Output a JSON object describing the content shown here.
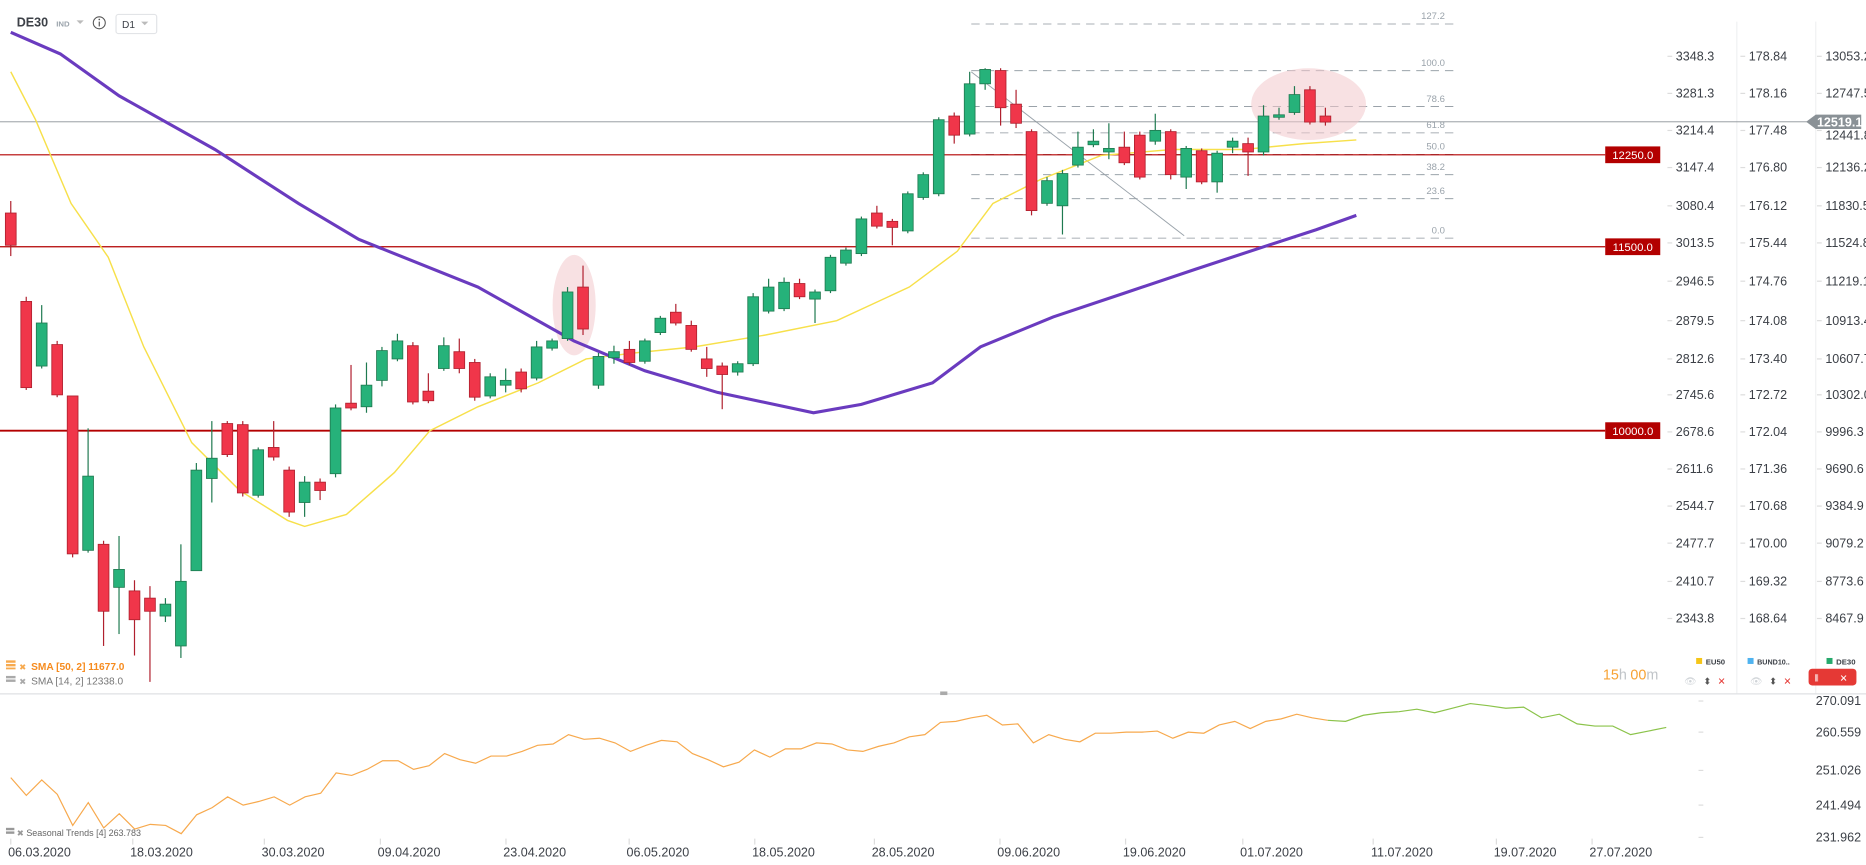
{
  "header": {
    "symbol": "DE30",
    "type": "IND",
    "interval": "D1"
  },
  "legend": {
    "sma50": "SMA [50, 2] 11677.0",
    "sma14": "SMA [14, 2] 12338.0",
    "seasonal": "Seasonal  Trends [4] 263.783",
    "countdown_h": "15",
    "countdown_hu": "h",
    "countdown_m": "00",
    "countdown_mu": "m",
    "instruments": [
      {
        "name": "EU50",
        "color": "#f5c518"
      },
      {
        "name": "BUND10..",
        "color": "#4fb3f0"
      },
      {
        "name": "DE30",
        "color": "#26a96c"
      }
    ]
  },
  "colors": {
    "up": "#26b27a",
    "down": "#f0364a",
    "sma50": "#6a3bbf",
    "sma14": "#f7e04a",
    "level": "#b30000",
    "seasonal_past": "#f7a94d",
    "seasonal_future": "#8bc34a"
  },
  "price_line": {
    "label": "12519.1",
    "value": 12519.1
  },
  "levels": [
    {
      "label": "12250.0",
      "value": 12250
    },
    {
      "label": "11500.0",
      "value": 11500
    },
    {
      "label": "10000.0",
      "value": 10000
    }
  ],
  "axes": {
    "eu50": [
      "3348.3",
      "3281.3",
      "3214.4",
      "3147.4",
      "3080.4",
      "3013.5",
      "2946.5",
      "2879.5",
      "2812.6",
      "2745.6",
      "2678.6",
      "2611.6",
      "2544.7",
      "2477.7",
      "2410.7",
      "2343.8"
    ],
    "bund": [
      "178.84",
      "178.16",
      "177.48",
      "176.80",
      "176.12",
      "175.44",
      "174.76",
      "174.08",
      "173.40",
      "172.72",
      "172.04",
      "171.36",
      "170.68",
      "170.00",
      "169.32",
      "168.64"
    ],
    "de30": [
      "13053.2",
      "12747.5",
      "12441.8",
      "12136.2",
      "11830.5",
      "11524.8",
      "11219.1",
      "10913.4",
      "10607.7",
      "10302.0",
      "9996.3",
      "9690.6",
      "9384.9",
      "9079.2",
      "8773.6",
      "8467.9"
    ],
    "seasonal": [
      "270.091",
      "260.559",
      "251.026",
      "241.494",
      "231.962"
    ],
    "dates": [
      "06.03.2020",
      "18.03.2020",
      "30.03.2020",
      "09.04.2020",
      "23.04.2020",
      "06.05.2020",
      "18.05.2020",
      "28.05.2020",
      "09.06.2020",
      "19.06.2020",
      "01.07.2020",
      "11.07.2020",
      "19.07.2020",
      "27.07.2020"
    ]
  },
  "chart_data": {
    "type": "candlestick",
    "title": "DE30 D1",
    "ylim": [
      8467.9,
      13053.2
    ],
    "candles_ohlc": [
      [
        11775,
        11873,
        11424,
        11512
      ],
      [
        11054,
        11092,
        10332,
        10351
      ],
      [
        10527,
        11024,
        10507,
        10878
      ],
      [
        10702,
        10732,
        10273,
        10292
      ],
      [
        10283,
        10283,
        8966,
        8995
      ],
      [
        9024,
        10019,
        9005,
        9629
      ],
      [
        9073,
        9102,
        8244,
        8527
      ],
      [
        8722,
        9141,
        8341,
        8868
      ],
      [
        8693,
        8780,
        8166,
        8458
      ],
      [
        8634,
        8732,
        7951,
        8527
      ],
      [
        8488,
        8634,
        8439,
        8585
      ],
      [
        8244,
        9073,
        8146,
        8771
      ],
      [
        8858,
        9736,
        8858,
        9678
      ],
      [
        9610,
        10078,
        9414,
        9775
      ],
      [
        10058,
        10078,
        9785,
        9805
      ],
      [
        10049,
        10078,
        9463,
        9492
      ],
      [
        9473,
        9863,
        9454,
        9844
      ],
      [
        9863,
        10078,
        9756,
        9785
      ],
      [
        9678,
        9707,
        9297,
        9336
      ],
      [
        9414,
        9629,
        9297,
        9580
      ],
      [
        9580,
        9610,
        9434,
        9512
      ],
      [
        9649,
        10214,
        9619,
        10185
      ],
      [
        10224,
        10536,
        10166,
        10185
      ],
      [
        10195,
        10556,
        10146,
        10371
      ],
      [
        10410,
        10683,
        10361,
        10653
      ],
      [
        10585,
        10790,
        10566,
        10732
      ],
      [
        10693,
        10722,
        10214,
        10234
      ],
      [
        10322,
        10468,
        10224,
        10244
      ],
      [
        10507,
        10761,
        10488,
        10693
      ],
      [
        10644,
        10751,
        10468,
        10507
      ],
      [
        10556,
        10585,
        10244,
        10273
      ],
      [
        10283,
        10468,
        10263,
        10439
      ],
      [
        10371,
        10507,
        10312,
        10410
      ],
      [
        10478,
        10507,
        10312,
        10341
      ],
      [
        10429,
        10732,
        10410,
        10683
      ],
      [
        10673,
        10751,
        10653,
        10732
      ],
      [
        10751,
        11171,
        10732,
        11131
      ],
      [
        11171,
        11346,
        10780,
        10829
      ],
      [
        10371,
        10634,
        10341,
        10605
      ],
      [
        10595,
        10693,
        10546,
        10644
      ],
      [
        10663,
        10732,
        10536,
        10556
      ],
      [
        10566,
        10751,
        10546,
        10732
      ],
      [
        10800,
        10936,
        10780,
        10917
      ],
      [
        10966,
        11034,
        10858,
        10878
      ],
      [
        10858,
        10897,
        10644,
        10663
      ],
      [
        10585,
        10683,
        10439,
        10507
      ],
      [
        10527,
        10556,
        10175,
        10458
      ],
      [
        10478,
        10566,
        10449,
        10546
      ],
      [
        10546,
        11122,
        10527,
        11092
      ],
      [
        10975,
        11239,
        10956,
        11171
      ],
      [
        10995,
        11249,
        10975,
        11210
      ],
      [
        11200,
        11239,
        11073,
        11092
      ],
      [
        11073,
        11151,
        10878,
        11131
      ],
      [
        11141,
        11434,
        11122,
        11414
      ],
      [
        11366,
        11493,
        11346,
        11473
      ],
      [
        11444,
        11746,
        11424,
        11727
      ],
      [
        11775,
        11834,
        11649,
        11668
      ],
      [
        11707,
        11727,
        11512,
        11658
      ],
      [
        11629,
        11951,
        11610,
        11932
      ],
      [
        11902,
        12107,
        11883,
        12088
      ],
      [
        11932,
        12556,
        11912,
        12536
      ],
      [
        12566,
        12595,
        12341,
        12410
      ],
      [
        12419,
        12927,
        12400,
        12829
      ],
      [
        12829,
        12956,
        12780,
        12946
      ],
      [
        12937,
        12956,
        12488,
        12634
      ],
      [
        12663,
        12780,
        12468,
        12507
      ],
      [
        12439,
        12458,
        11756,
        11795
      ],
      [
        11854,
        12068,
        11834,
        12039
      ],
      [
        11834,
        12127,
        11600,
        12097
      ],
      [
        12166,
        12439,
        12146,
        12312
      ],
      [
        12332,
        12458,
        12312,
        12361
      ],
      [
        12273,
        12507,
        12214,
        12302
      ],
      [
        12312,
        12439,
        12166,
        12185
      ],
      [
        12410,
        12439,
        12049,
        12068
      ],
      [
        12361,
        12585,
        12332,
        12449
      ],
      [
        12439,
        12458,
        12049,
        12088
      ],
      [
        12068,
        12322,
        11971,
        12302
      ],
      [
        12283,
        12302,
        12010,
        12029
      ],
      [
        12029,
        12283,
        11941,
        12263
      ],
      [
        12312,
        12390,
        12263,
        12361
      ],
      [
        12341,
        12390,
        12078,
        12273
      ],
      [
        12273,
        12654,
        12244,
        12566
      ],
      [
        12556,
        12634,
        12536,
        12576
      ],
      [
        12595,
        12810,
        12576,
        12741
      ],
      [
        12780,
        12810,
        12497,
        12517
      ],
      [
        12566,
        12634,
        12488,
        12517
      ]
    ],
    "sma50": [
      [
        0,
        13249
      ],
      [
        3.2,
        13073
      ],
      [
        7,
        12731
      ],
      [
        13.2,
        12293
      ],
      [
        18.6,
        11853
      ],
      [
        22.5,
        11561
      ],
      [
        30.2,
        11171
      ],
      [
        36.4,
        10732
      ],
      [
        41,
        10488
      ],
      [
        45.7,
        10312
      ],
      [
        51.9,
        10146
      ],
      [
        55,
        10214
      ],
      [
        59.6,
        10390
      ],
      [
        62.7,
        10683
      ],
      [
        67.4,
        10927
      ],
      [
        72,
        11122
      ],
      [
        76.6,
        11317
      ],
      [
        81.3,
        11512
      ],
      [
        84.4,
        11639
      ],
      [
        87,
        11756
      ]
    ],
    "sma14": [
      [
        0,
        12927
      ],
      [
        1.6,
        12536
      ],
      [
        3.9,
        11853
      ],
      [
        6.3,
        11414
      ],
      [
        8.6,
        10683
      ],
      [
        11.7,
        9902
      ],
      [
        14.8,
        9512
      ],
      [
        17.9,
        9268
      ],
      [
        19,
        9219
      ],
      [
        21.7,
        9317
      ],
      [
        24.8,
        9658
      ],
      [
        27.1,
        10000
      ],
      [
        30.2,
        10195
      ],
      [
        34.1,
        10390
      ],
      [
        37.2,
        10585
      ],
      [
        40.3,
        10634
      ],
      [
        44.2,
        10683
      ],
      [
        48.8,
        10780
      ],
      [
        53.4,
        10897
      ],
      [
        58.1,
        11171
      ],
      [
        61.2,
        11463
      ],
      [
        63.5,
        11853
      ],
      [
        66.6,
        12049
      ],
      [
        70.5,
        12244
      ],
      [
        75.1,
        12293
      ],
      [
        79.7,
        12293
      ],
      [
        83.6,
        12341
      ],
      [
        87,
        12371
      ]
    ],
    "fibonacci": {
      "high": 12940,
      "low": 11570,
      "levels": [
        "127.2",
        "100.0",
        "78.6",
        "61.8",
        "50.0",
        "38.2",
        "23.6",
        "0.0"
      ]
    },
    "seasonal_past": [
      248.7,
      243.7,
      248.0,
      244.0,
      235.3,
      241.7,
      234.6,
      238.6,
      234.3,
      235.6,
      235.3,
      233.0,
      238.3,
      240.3,
      243.3,
      241.0,
      242.0,
      243.3,
      241.0,
      243.3,
      244.3,
      250.0,
      249.3,
      251.0,
      253.4,
      253.4,
      251.0,
      252.0,
      255.4,
      253.7,
      252.7,
      254.7,
      254.7,
      256.0,
      257.7,
      258.1,
      260.7,
      259.4,
      259.7,
      258.4,
      256.0,
      257.7,
      259.1,
      258.7,
      255.4,
      253.7,
      251.7,
      253.0,
      256.4,
      254.4,
      256.7,
      256.7,
      258.4,
      258.1,
      256.4,
      256.0,
      257.4,
      258.4,
      260.1,
      260.7,
      264.1,
      264.4,
      265.4,
      266.1,
      263.4,
      263.7,
      258.4,
      260.7,
      259.4,
      258.7,
      261.1,
      261.1,
      261.4,
      261.4,
      261.7,
      259.7,
      261.4,
      261.1,
      263.4,
      264.4,
      262.4,
      264.4,
      265.1,
      266.4,
      265.4,
      264.7
    ],
    "seasonal_future": [
      264.7,
      264.4,
      266.1,
      266.8,
      267.1,
      267.8,
      266.8,
      268.1,
      269.4,
      268.8,
      268.1,
      268.4,
      265.4,
      266.4,
      263.7,
      263.1,
      263.1,
      260.7,
      261.7,
      262.7
    ],
    "seasonal_ylim": [
      231.962,
      270.091
    ]
  }
}
